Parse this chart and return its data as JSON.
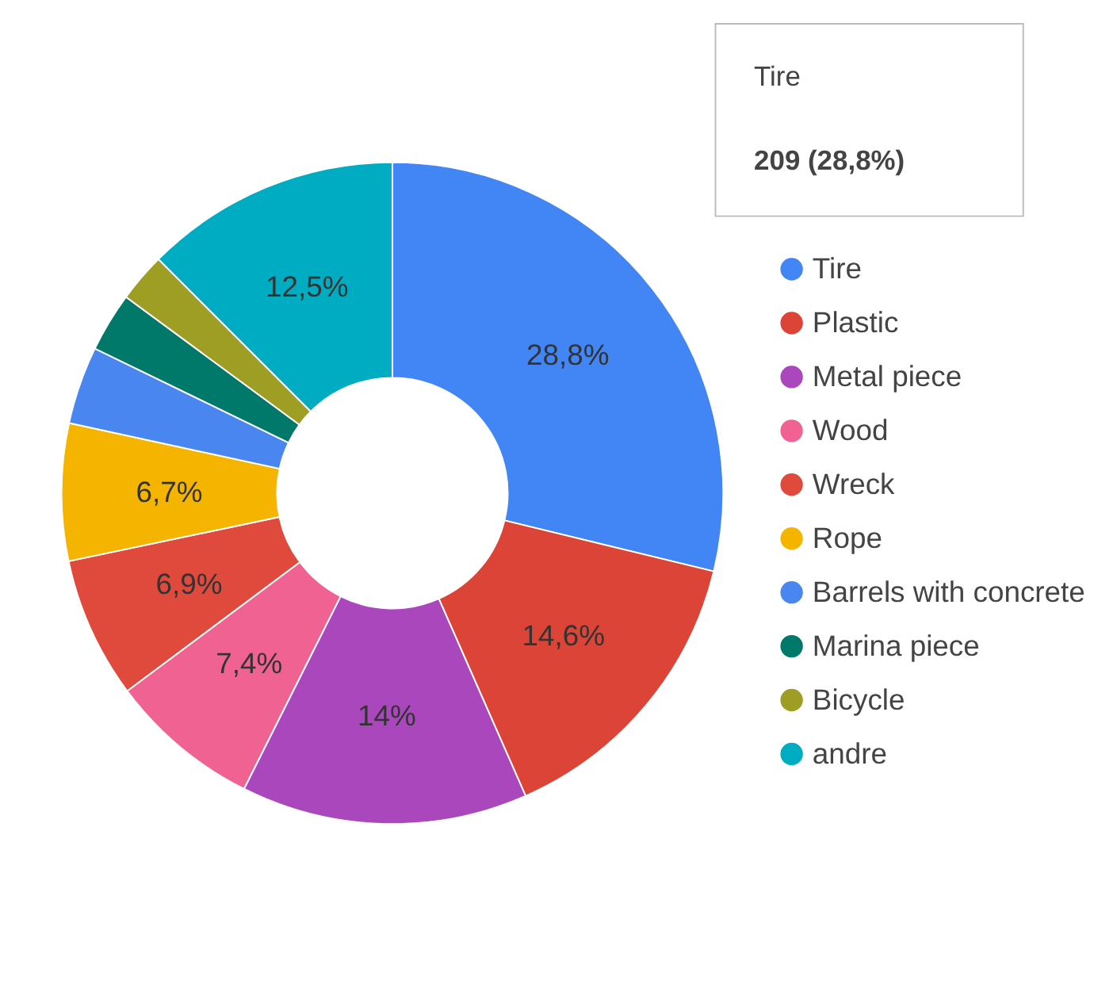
{
  "chart_data": {
    "type": "donut",
    "categories": [
      "Tire",
      "Plastic",
      "Metal piece",
      "Wood",
      "Wreck",
      "Rope",
      "Barrels with concrete",
      "Marina piece",
      "Bicycle",
      "andre"
    ],
    "values": [
      28.8,
      14.6,
      14,
      7.4,
      6.9,
      6.7,
      3.8,
      2.9,
      2.4,
      12.5
    ],
    "colors": [
      "#4285f4",
      "#db4437",
      "#ab47bc",
      "#f06292",
      "#e04a3c",
      "#f4b400",
      "#4a86f0",
      "#00796b",
      "#9e9d24",
      "#00acc1"
    ],
    "value_labels": [
      "28,8%",
      "14,6%",
      "14%",
      "7,4%",
      "6,9%",
      "6,7%",
      null,
      null,
      null,
      "12,5%"
    ],
    "annotations": [
      "Tire",
      "209 (28,8%)"
    ],
    "legend": "right"
  }
}
